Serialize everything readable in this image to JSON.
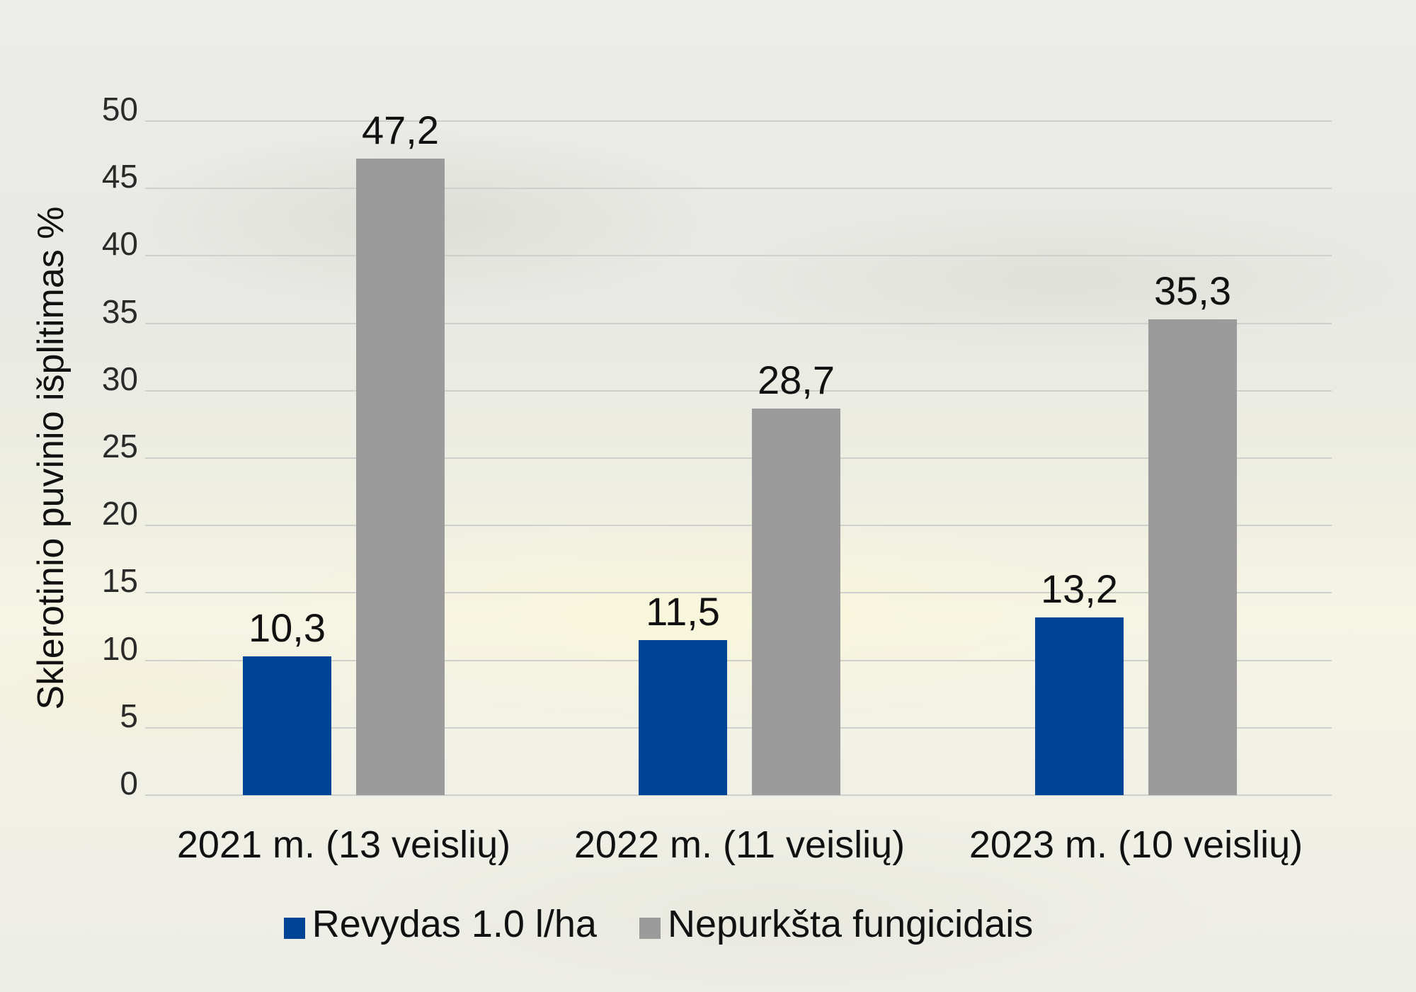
{
  "chart_data": {
    "type": "bar",
    "title": "",
    "xlabel": "",
    "ylabel": "Sklerotinio puvinio išplitimas %",
    "ylim": [
      0,
      50
    ],
    "yticks": [
      "0",
      "5",
      "10",
      "15",
      "20",
      "25",
      "30",
      "35",
      "40",
      "45",
      "50"
    ],
    "grid": true,
    "legend_position": "bottom",
    "categories": [
      "2021 m. (13 veislių)",
      "2022 m. (11 veislių)",
      "2023 m. (10 veislių)"
    ],
    "series": [
      {
        "name": "Revydas 1.0 l/ha",
        "color": "#004595",
        "values": [
          10.3,
          11.5,
          13.2
        ],
        "labels": [
          "10,3",
          "11,5",
          "13,2"
        ]
      },
      {
        "name": "Nepurkšta fungicidais",
        "color": "#9b9b9b",
        "values": [
          47.2,
          28.7,
          35.3
        ],
        "labels": [
          "47,2",
          "28,7",
          "35,3"
        ]
      }
    ]
  },
  "axis": {
    "y_title": "Sklerotinio puvinio išplitimas %",
    "yticks": [
      "50",
      "45",
      "40",
      "35",
      "30",
      "25",
      "20",
      "15",
      "10",
      "5",
      "0"
    ]
  },
  "categories": [
    "2021 m. (13 veislių)",
    "2022 m. (11 veislių)",
    "2023 m. (10 veislių)"
  ],
  "values": {
    "revydas": [
      "10,3",
      "11,5",
      "13,2"
    ],
    "nepurksta": [
      "47,2",
      "28,7",
      "35,3"
    ]
  },
  "legend": {
    "items": [
      {
        "label": "Revydas 1.0 l/ha",
        "color": "#004595"
      },
      {
        "label": "Nepurkšta fungicidais",
        "color": "#9b9b9b"
      }
    ]
  }
}
